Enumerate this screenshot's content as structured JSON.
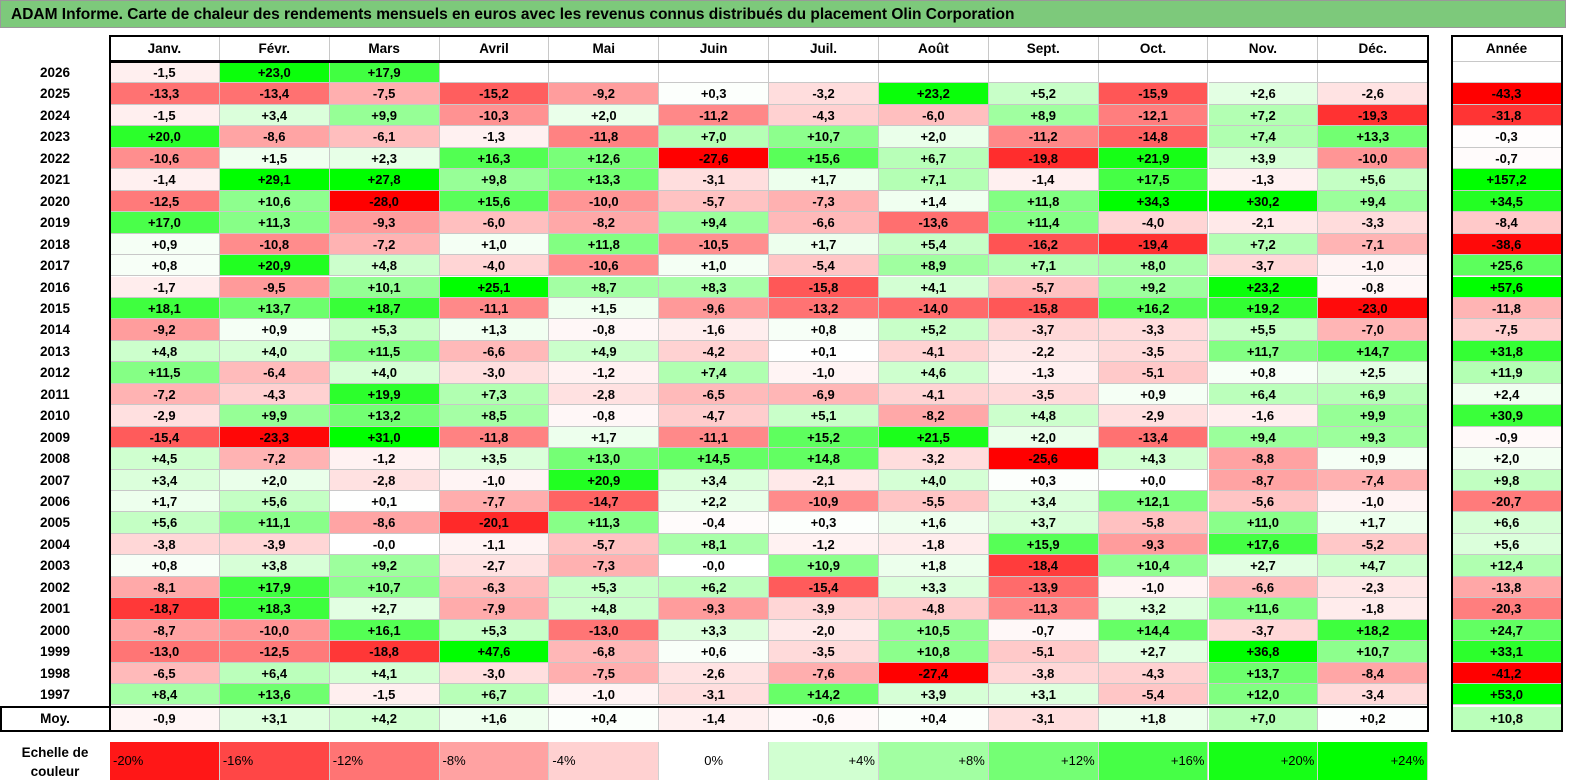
{
  "title": "ADAM Informe. Carte de chaleur des rendements mensuels en euros avec les revenus connus distribués du placement Olin Corporation",
  "chart_data": {
    "type": "heatmap",
    "columns": [
      "Janv.",
      "Févr.",
      "Mars",
      "Avril",
      "Mai",
      "Juin",
      "Juil.",
      "Août",
      "Sept.",
      "Oct.",
      "Nov.",
      "Déc."
    ],
    "year_column": "Année",
    "rows": [
      {
        "label": "2026",
        "values": [
          "-1,5",
          "+23,0",
          "+17,9",
          "",
          "",
          "",
          "",
          "",
          "",
          "",
          "",
          ""
        ],
        "year": ""
      },
      {
        "label": "2025",
        "values": [
          "-13,3",
          "-13,4",
          "-7,5",
          "-15,2",
          "-9,2",
          "+0,3",
          "-3,2",
          "+23,2",
          "+5,2",
          "-15,9",
          "+2,6",
          "-2,6"
        ],
        "year": "-43,3"
      },
      {
        "label": "2024",
        "values": [
          "-1,5",
          "+3,4",
          "+9,9",
          "-10,3",
          "+2,0",
          "-11,2",
          "-4,3",
          "-6,0",
          "+8,9",
          "-12,1",
          "+7,2",
          "-19,3"
        ],
        "year": "-31,8"
      },
      {
        "label": "2023",
        "values": [
          "+20,0",
          "-8,6",
          "-6,1",
          "-1,3",
          "-11,8",
          "+7,0",
          "+10,7",
          "+2,0",
          "-11,2",
          "-14,8",
          "+7,4",
          "+13,3"
        ],
        "year": "-0,3"
      },
      {
        "label": "2022",
        "values": [
          "-10,6",
          "+1,5",
          "+2,3",
          "+16,3",
          "+12,6",
          "-27,6",
          "+15,6",
          "+6,7",
          "-19,8",
          "+21,9",
          "+3,9",
          "-10,0"
        ],
        "year": "-0,7"
      },
      {
        "label": "2021",
        "values": [
          "-1,4",
          "+29,1",
          "+27,8",
          "+9,8",
          "+13,3",
          "-3,1",
          "+1,7",
          "+7,1",
          "-1,4",
          "+17,5",
          "-1,3",
          "+5,6"
        ],
        "year": "+157,2"
      },
      {
        "label": "2020",
        "values": [
          "-12,5",
          "+10,6",
          "-28,0",
          "+15,6",
          "-10,0",
          "-5,7",
          "-7,3",
          "+1,4",
          "+11,8",
          "+34,3",
          "+30,2",
          "+9,4"
        ],
        "year": "+34,5"
      },
      {
        "label": "2019",
        "values": [
          "+17,0",
          "+11,3",
          "-9,3",
          "-6,0",
          "-8,2",
          "+9,4",
          "-6,6",
          "-13,6",
          "+11,4",
          "-4,0",
          "-2,1",
          "-3,3"
        ],
        "year": "-8,4"
      },
      {
        "label": "2018",
        "values": [
          "+0,9",
          "-10,8",
          "-7,2",
          "+1,0",
          "+11,8",
          "-10,5",
          "+1,7",
          "+5,4",
          "-16,2",
          "-19,4",
          "+7,2",
          "-7,1"
        ],
        "year": "-38,6"
      },
      {
        "label": "2017",
        "values": [
          "+0,8",
          "+20,9",
          "+4,8",
          "-4,0",
          "-10,6",
          "+1,0",
          "-5,4",
          "+8,9",
          "+7,1",
          "+8,0",
          "-3,7",
          "-1,0"
        ],
        "year": "+25,6"
      },
      {
        "label": "2016",
        "values": [
          "-1,7",
          "-9,5",
          "+10,1",
          "+25,1",
          "+8,7",
          "+8,3",
          "-15,8",
          "+4,1",
          "-5,7",
          "+9,2",
          "+23,2",
          "-0,8"
        ],
        "year": "+57,6"
      },
      {
        "label": "2015",
        "values": [
          "+18,1",
          "+13,7",
          "+18,7",
          "-11,1",
          "+1,5",
          "-9,6",
          "-13,2",
          "-14,0",
          "-15,8",
          "+16,2",
          "+19,2",
          "-23,0"
        ],
        "year": "-11,8"
      },
      {
        "label": "2014",
        "values": [
          "-9,2",
          "+0,9",
          "+5,3",
          "+1,3",
          "-0,8",
          "-1,6",
          "+0,8",
          "+5,2",
          "-3,7",
          "-3,3",
          "+5,5",
          "-7,0"
        ],
        "year": "-7,5"
      },
      {
        "label": "2013",
        "values": [
          "+4,8",
          "+4,0",
          "+11,5",
          "-6,6",
          "+4,9",
          "-4,2",
          "+0,1",
          "-4,1",
          "-2,2",
          "-3,5",
          "+11,7",
          "+14,7"
        ],
        "year": "+31,8"
      },
      {
        "label": "2012",
        "values": [
          "+11,5",
          "-6,4",
          "+4,0",
          "-3,0",
          "-1,2",
          "+7,4",
          "-1,0",
          "+4,6",
          "-1,3",
          "-5,1",
          "+0,8",
          "+2,5"
        ],
        "year": "+11,9"
      },
      {
        "label": "2011",
        "values": [
          "-7,2",
          "-4,3",
          "+19,9",
          "+7,3",
          "-2,8",
          "-6,5",
          "-6,9",
          "-4,1",
          "-3,5",
          "+0,9",
          "+6,4",
          "+6,9"
        ],
        "year": "+2,4"
      },
      {
        "label": "2010",
        "values": [
          "-2,9",
          "+9,9",
          "+13,2",
          "+8,5",
          "-0,8",
          "-4,7",
          "+5,1",
          "-8,2",
          "+4,8",
          "-2,9",
          "-1,6",
          "+9,9"
        ],
        "year": "+30,9"
      },
      {
        "label": "2009",
        "values": [
          "-15,4",
          "-23,3",
          "+31,0",
          "-11,8",
          "+1,7",
          "-11,1",
          "+15,2",
          "+21,5",
          "+2,0",
          "-13,4",
          "+9,4",
          "+9,3"
        ],
        "year": "-0,9"
      },
      {
        "label": "2008",
        "values": [
          "+4,5",
          "-7,2",
          "-1,2",
          "+3,5",
          "+13,0",
          "+14,5",
          "+14,8",
          "-3,2",
          "-25,6",
          "+4,3",
          "-8,8",
          "+0,9"
        ],
        "year": "+2,0"
      },
      {
        "label": "2007",
        "values": [
          "+3,4",
          "+2,0",
          "-2,8",
          "-1,0",
          "+20,9",
          "+3,4",
          "-2,1",
          "+4,0",
          "+0,3",
          "+0,0",
          "-8,7",
          "-7,4"
        ],
        "year": "+9,8"
      },
      {
        "label": "2006",
        "values": [
          "+1,7",
          "+5,6",
          "+0,1",
          "-7,7",
          "-14,7",
          "+2,2",
          "-10,9",
          "-5,5",
          "+3,4",
          "+12,1",
          "-5,6",
          "-1,0"
        ],
        "year": "-20,7"
      },
      {
        "label": "2005",
        "values": [
          "+5,6",
          "+11,1",
          "-8,6",
          "-20,1",
          "+11,3",
          "-0,4",
          "+0,3",
          "+1,6",
          "+3,7",
          "-5,8",
          "+11,0",
          "+1,7"
        ],
        "year": "+6,6"
      },
      {
        "label": "2004",
        "values": [
          "-3,8",
          "-3,9",
          "-0,0",
          "-1,1",
          "-5,7",
          "+8,1",
          "-1,2",
          "-1,8",
          "+15,9",
          "-9,3",
          "+17,6",
          "-5,2"
        ],
        "year": "+5,6"
      },
      {
        "label": "2003",
        "values": [
          "+0,8",
          "+3,8",
          "+9,2",
          "-2,7",
          "-7,3",
          "-0,0",
          "+10,9",
          "+1,8",
          "-18,4",
          "+10,4",
          "+2,7",
          "+4,7"
        ],
        "year": "+12,4"
      },
      {
        "label": "2002",
        "values": [
          "-8,1",
          "+17,9",
          "+10,7",
          "-6,3",
          "+5,3",
          "+6,2",
          "-15,4",
          "+3,3",
          "-13,9",
          "-1,0",
          "-6,6",
          "-2,3"
        ],
        "year": "-13,8"
      },
      {
        "label": "2001",
        "values": [
          "-18,7",
          "+18,3",
          "+2,7",
          "-7,9",
          "+4,8",
          "-9,3",
          "-3,9",
          "-4,8",
          "-11,3",
          "+3,2",
          "+11,6",
          "-1,8"
        ],
        "year": "-20,3"
      },
      {
        "label": "2000",
        "values": [
          "-8,7",
          "-10,0",
          "+16,1",
          "+5,3",
          "-13,0",
          "+3,3",
          "-2,0",
          "+10,5",
          "-0,7",
          "+14,4",
          "-3,7",
          "+18,2"
        ],
        "year": "+24,7"
      },
      {
        "label": "1999",
        "values": [
          "-13,0",
          "-12,5",
          "-18,8",
          "+47,6",
          "-6,8",
          "+0,6",
          "-3,5",
          "+10,8",
          "-5,1",
          "+2,7",
          "+36,8",
          "+10,7"
        ],
        "year": "+33,1"
      },
      {
        "label": "1998",
        "values": [
          "-6,5",
          "+6,4",
          "+4,1",
          "-3,0",
          "-7,5",
          "-2,6",
          "-7,6",
          "-27,4",
          "-3,8",
          "-4,3",
          "+13,7",
          "-8,4"
        ],
        "year": "-41,2"
      },
      {
        "label": "1997",
        "values": [
          "+8,4",
          "+13,6",
          "-1,5",
          "+6,7",
          "-1,0",
          "-3,1",
          "+14,2",
          "+3,9",
          "+3,1",
          "-5,4",
          "+12,0",
          "-3,4"
        ],
        "year": "+53,0"
      }
    ],
    "average": {
      "label": "Moy.",
      "values": [
        "-0,9",
        "+3,1",
        "+4,2",
        "+1,6",
        "+0,4",
        "-1,4",
        "-0,6",
        "+0,4",
        "-3,1",
        "+1,8",
        "+7,0",
        "+0,2"
      ],
      "year": "+10,8"
    },
    "legend": {
      "label": "Echelle de couleur",
      "steps": [
        "-20%",
        "-16%",
        "-12%",
        "-8%",
        "-4%",
        "0%",
        "+4%",
        "+8%",
        "+12%",
        "+16%",
        "+20%",
        "+24%"
      ]
    },
    "colors": {
      "negative_max": "#ff0000",
      "neutral": "#ffffff",
      "positive_max": "#00ff00",
      "title_bg": "#7dc97b"
    }
  }
}
